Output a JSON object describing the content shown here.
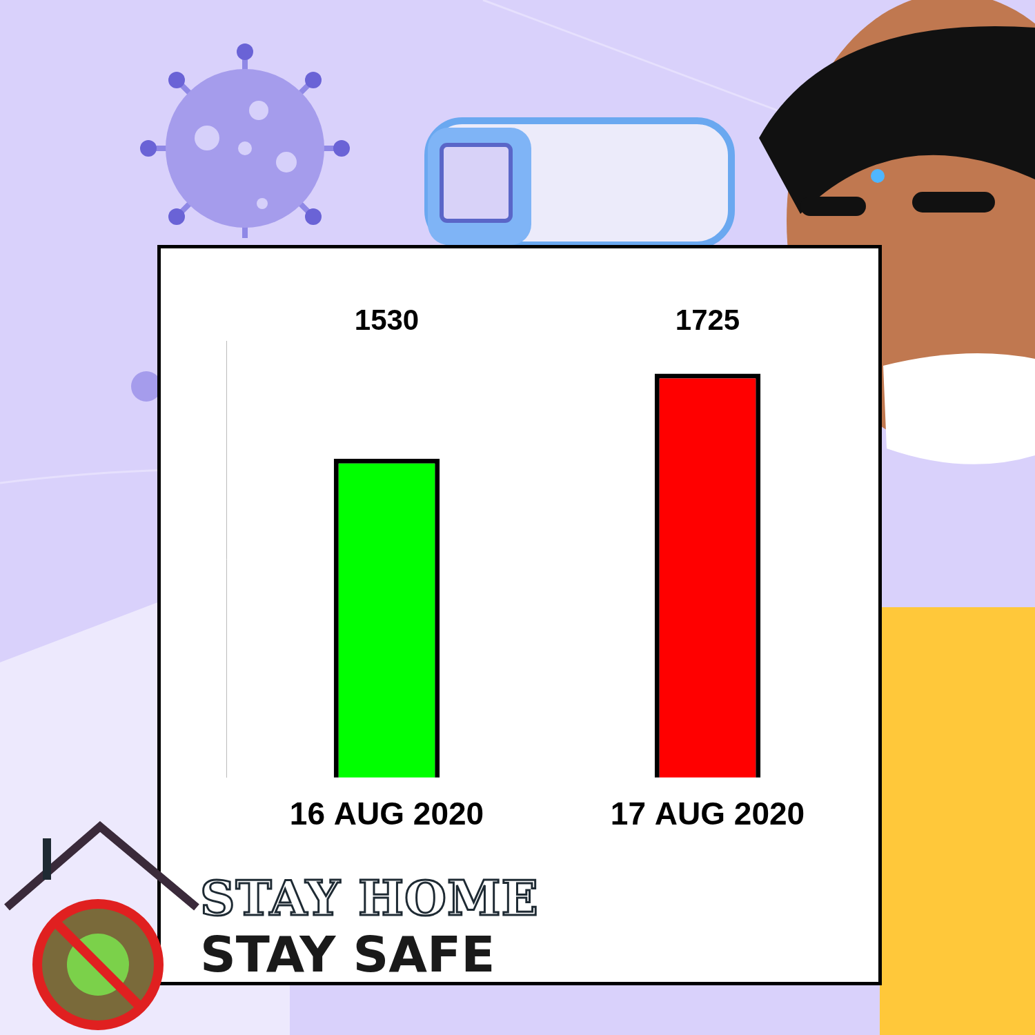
{
  "chart_data": {
    "type": "bar",
    "categories": [
      "16 AUG 2020",
      "17 AUG 2020"
    ],
    "values": [
      1530,
      1725
    ],
    "colors": [
      "#00ff00",
      "#ff0000"
    ],
    "ylim": [
      800,
      1800
    ],
    "data_labels": true,
    "tick_labels": "x",
    "grid": false,
    "annotations": [
      "STAY HOME",
      "STAY SAFE"
    ]
  }
}
